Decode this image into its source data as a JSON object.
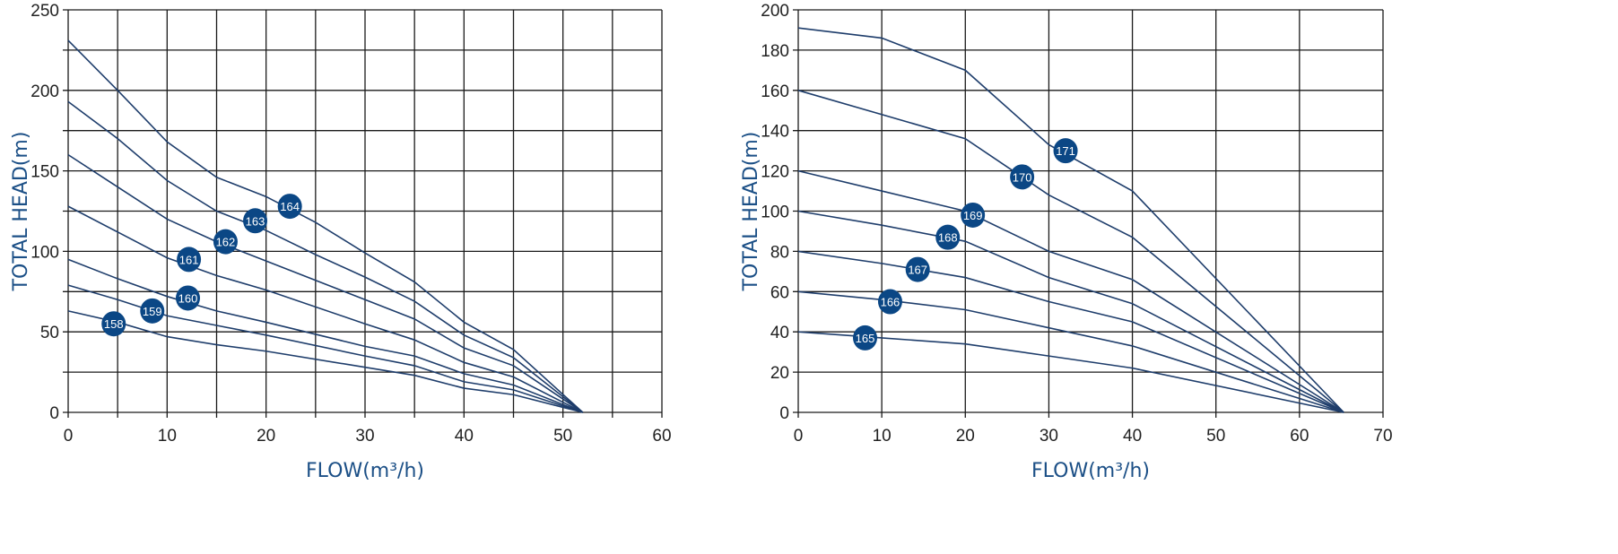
{
  "chart_data": [
    {
      "type": "line",
      "xlabel": "FLOW(m³/h)",
      "ylabel": "TOTAL HEAD(m)",
      "xlim": [
        0,
        60
      ],
      "ylim": [
        0,
        250
      ],
      "x_ticks": [
        0,
        10,
        20,
        30,
        40,
        50,
        60
      ],
      "y_ticks": [
        0,
        50,
        100,
        150,
        200,
        250
      ],
      "x_grid_step": 5,
      "y_grid_step": 25,
      "grid": true,
      "series": [
        {
          "name": "164",
          "x": [
            0,
            5,
            10,
            15,
            20,
            25,
            30,
            35,
            40,
            45,
            52
          ],
          "y": [
            231,
            200,
            168,
            146,
            134,
            118,
            99,
            81,
            56,
            39,
            0
          ],
          "label_at": [
            22.4,
            128
          ]
        },
        {
          "name": "163",
          "x": [
            0,
            5,
            10,
            15,
            20,
            25,
            30,
            35,
            40,
            45,
            52
          ],
          "y": [
            193,
            170,
            144,
            125,
            113,
            98,
            84,
            69,
            48,
            34,
            0
          ],
          "label_at": [
            18.9,
            119
          ]
        },
        {
          "name": "162",
          "x": [
            0,
            5,
            10,
            15,
            20,
            30,
            35,
            40,
            45,
            52
          ],
          "y": [
            160,
            140,
            120,
            106,
            94,
            70,
            58,
            40,
            29,
            0
          ],
          "label_at": [
            15.9,
            106
          ]
        },
        {
          "name": "161",
          "x": [
            0,
            5,
            10,
            15,
            20,
            30,
            35,
            40,
            45,
            52
          ],
          "y": [
            128,
            112,
            96,
            85,
            76,
            55,
            45,
            31,
            22,
            0
          ],
          "label_at": [
            12.2,
            95
          ]
        },
        {
          "name": "160",
          "x": [
            0,
            5,
            10,
            15,
            20,
            30,
            35,
            40,
            45,
            52
          ],
          "y": [
            95,
            83,
            72,
            63,
            56,
            41,
            35,
            24,
            17,
            0
          ],
          "label_at": [
            12.1,
            71
          ]
        },
        {
          "name": "159",
          "x": [
            0,
            5,
            10,
            15,
            20,
            30,
            35,
            40,
            45,
            52
          ],
          "y": [
            79,
            70,
            60,
            54,
            48,
            35,
            29,
            19,
            14,
            0
          ],
          "label_at": [
            8.5,
            63
          ]
        },
        {
          "name": "158",
          "x": [
            0,
            5,
            10,
            15,
            20,
            30,
            35,
            40,
            45,
            52
          ],
          "y": [
            63,
            56,
            47,
            42,
            38,
            28,
            23,
            15,
            11,
            0
          ],
          "label_at": [
            4.6,
            55
          ]
        }
      ]
    },
    {
      "type": "line",
      "xlabel": "FLOW(m³/h)",
      "ylabel": "TOTAL HEAD(m)",
      "xlim": [
        0,
        70
      ],
      "ylim": [
        0,
        200
      ],
      "x_ticks": [
        0,
        10,
        20,
        30,
        40,
        50,
        60,
        70
      ],
      "y_ticks": [
        0,
        20,
        40,
        60,
        80,
        100,
        120,
        140,
        160,
        180,
        200
      ],
      "x_grid_step": 10,
      "y_grid_step": 20,
      "grid": true,
      "series": [
        {
          "name": "171",
          "x": [
            0,
            10,
            20,
            30,
            40,
            65.3
          ],
          "y": [
            191,
            186,
            170,
            133,
            110,
            0
          ],
          "label_at": [
            32,
            130
          ]
        },
        {
          "name": "170",
          "x": [
            0,
            10,
            20,
            30,
            40,
            65.3
          ],
          "y": [
            160,
            148,
            136,
            108,
            87,
            0
          ],
          "label_at": [
            26.8,
            117
          ]
        },
        {
          "name": "169",
          "x": [
            0,
            10,
            20,
            30,
            40,
            65.3
          ],
          "y": [
            120,
            110,
            100,
            80,
            66,
            0
          ],
          "label_at": [
            20.9,
            98
          ]
        },
        {
          "name": "168",
          "x": [
            0,
            10,
            20,
            30,
            40,
            65.3
          ],
          "y": [
            100,
            93,
            85,
            67,
            54,
            0
          ],
          "label_at": [
            17.9,
            87
          ]
        },
        {
          "name": "167",
          "x": [
            0,
            10,
            20,
            30,
            40,
            65.3
          ],
          "y": [
            80,
            74,
            67,
            55,
            45,
            0
          ],
          "label_at": [
            14.3,
            71
          ]
        },
        {
          "name": "166",
          "x": [
            0,
            10,
            20,
            30,
            40,
            65.3
          ],
          "y": [
            60,
            56,
            51,
            42,
            33,
            0
          ],
          "label_at": [
            11,
            55
          ]
        },
        {
          "name": "165",
          "x": [
            0,
            10,
            20,
            30,
            40,
            65.3
          ],
          "y": [
            40,
            37,
            34,
            28,
            22,
            0
          ],
          "label_at": [
            8,
            37
          ]
        }
      ]
    }
  ],
  "colors": {
    "line": "#1e3d6b",
    "badge": "#0b4785",
    "axis_label": "#1b4f86",
    "grid": "#1a1a1a"
  }
}
